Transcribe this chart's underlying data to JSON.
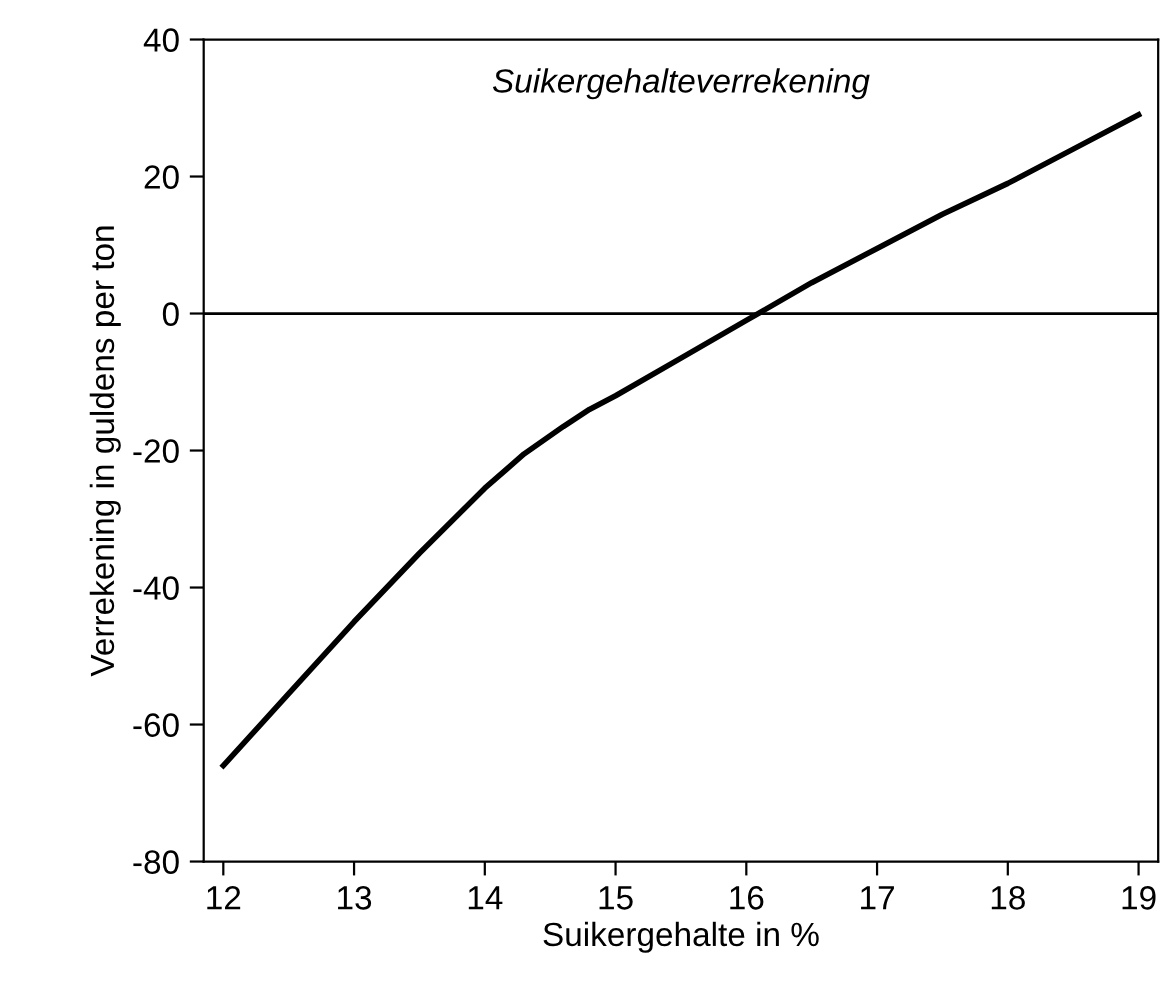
{
  "chart_data": {
    "type": "line",
    "title": "Suikergehalteverrekening",
    "xlabel": "Suikergehalte in %",
    "ylabel": "Verrekening in guldens per ton",
    "series": [
      {
        "color": "#000000",
        "x": [
          12,
          12.5,
          13,
          13.5,
          14,
          14.3,
          14.6,
          14.8,
          15,
          15.5,
          16,
          16.5,
          17,
          17.5,
          18,
          18.5,
          19
        ],
        "values": [
          -66,
          -55.5,
          -45,
          -35,
          -25.5,
          -20.5,
          -16.5,
          -14,
          -12,
          -6.5,
          -1,
          4.5,
          9.5,
          14.5,
          19,
          24,
          29
        ]
      }
    ],
    "xlim": [
      11.85,
      19.15
    ],
    "xticks": [
      12,
      13,
      14,
      15,
      16,
      17,
      18,
      19
    ],
    "ylim": [
      -80,
      40
    ],
    "yticks": [
      -80,
      -60,
      -40,
      -20,
      0,
      20,
      40
    ],
    "ref_lines": [
      {
        "axis": "y",
        "value": 0,
        "color": "#000000"
      }
    ],
    "grid": false,
    "legend": false,
    "marker": "none",
    "line_style": "solid"
  }
}
